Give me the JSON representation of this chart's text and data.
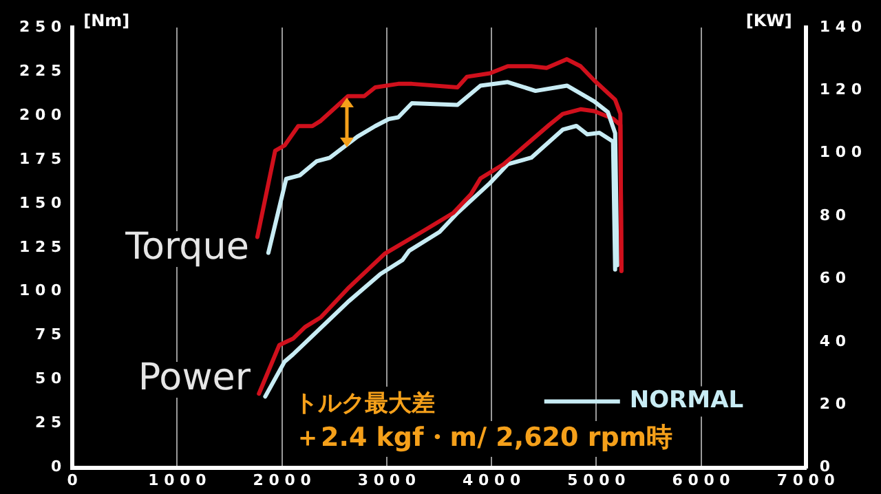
{
  "chart_data": {
    "type": "line",
    "ylabel": "[Nm]",
    "y2label": "[KW]",
    "xlim": [
      0,
      7000
    ],
    "xticks": [
      0,
      1000,
      2000,
      3000,
      4000,
      5000,
      6000,
      7000
    ],
    "ylim": [
      0,
      250
    ],
    "yticks": [
      0,
      25,
      50,
      75,
      100,
      125,
      150,
      175,
      200,
      225,
      250
    ],
    "y2lim": [
      0,
      140
    ],
    "y2ticks": [
      0,
      20,
      40,
      60,
      80,
      100,
      120,
      140
    ],
    "grid": "x",
    "legend": "bottom right",
    "marker": "none",
    "line_style": "solid",
    "series": [
      {
        "color": "#d0101c",
        "x": [
          1765,
          1935,
          2025,
          2155,
          2290,
          2370,
          2630,
          2785,
          2890,
          3110,
          3240,
          3675,
          3765,
          3985,
          4155,
          4380,
          4525,
          4720,
          4850,
          4980,
          5180,
          5230,
          5240
        ],
        "values": [
          131,
          180,
          183,
          194,
          194,
          197,
          211,
          211,
          216,
          218,
          218,
          216,
          222,
          224,
          228,
          228,
          227,
          232,
          228,
          220,
          209,
          201,
          112
        ]
      },
      {
        "name": "NORMAL",
        "color": "#c8ecf4",
        "x": [
          1870,
          2040,
          2170,
          2330,
          2455,
          2720,
          2890,
          3020,
          3110,
          3240,
          3675,
          3895,
          4155,
          4420,
          4720,
          4980,
          5110,
          5180,
          5200
        ],
        "values": [
          122,
          164,
          166,
          174,
          176,
          188,
          194,
          198,
          199,
          207,
          206,
          217,
          219,
          214,
          217,
          208,
          202,
          190,
          115
        ]
      },
      {
        "axis": "y2",
        "color": "#d0101c",
        "x": [
          1780,
          1975,
          2105,
          2220,
          2370,
          2630,
          2980,
          3335,
          3635,
          3805,
          3895,
          4115,
          4550,
          4680,
          4850,
          4980,
          5160,
          5230,
          5240
        ],
        "values": [
          23.5,
          39,
          41,
          44.7,
          47.8,
          57,
          68,
          75,
          81,
          87,
          92,
          96.5,
          109,
          112.5,
          114,
          113.4,
          111,
          109,
          62.5
        ]
      },
      {
        "axis": "y2",
        "color": "#c8ecf4",
        "x": [
          1840,
          2025,
          2105,
          2630,
          2940,
          3150,
          3215,
          3505,
          3675,
          3985,
          4155,
          4380,
          4680,
          4810,
          4915,
          5030,
          5160,
          5180
        ],
        "values": [
          22.6,
          33.7,
          36,
          52.7,
          61.6,
          66,
          69,
          75,
          81,
          90.5,
          96.5,
          98.6,
          107.5,
          108.7,
          106,
          106.5,
          103.7,
          63
        ]
      }
    ],
    "annotations": [
      "Torque",
      "Power",
      "トルク最大差",
      "＋2.4 kgf・m/ 2,620 rpm時"
    ]
  }
}
